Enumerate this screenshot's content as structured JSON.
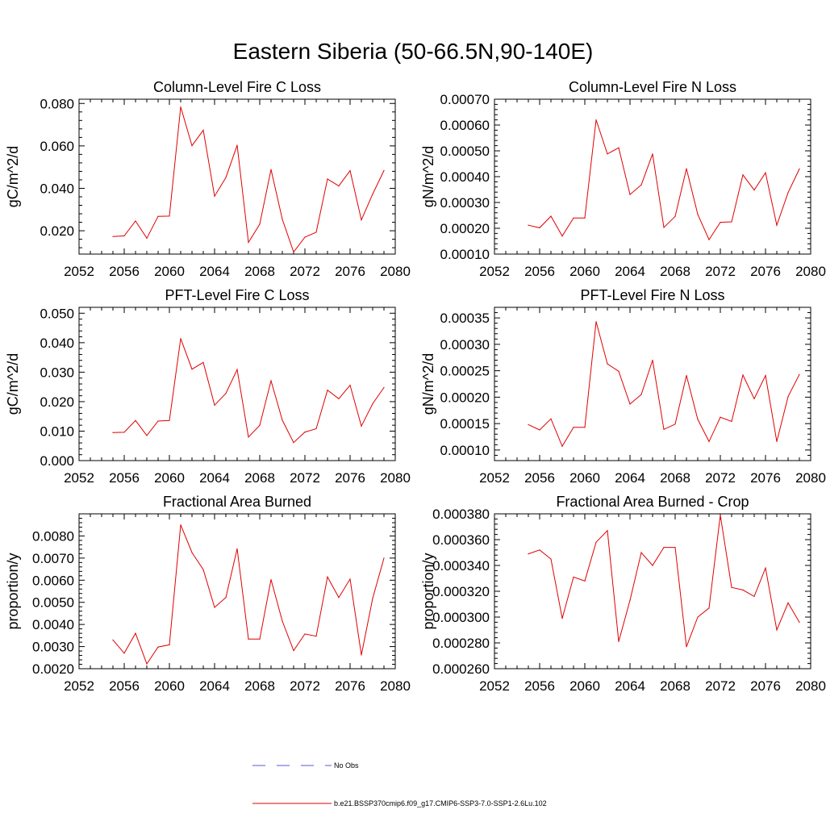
{
  "page_title": "Eastern Siberia (50-66.5N,90-140E)",
  "legend": {
    "items": [
      {
        "label": "No Obs",
        "color": "#5a5ad6",
        "style": "dashed"
      },
      {
        "label": "b.e21.BSSP370cmip6.f09_g17.CMIP6-SSP3-7.0-SSP1-2.6Lu.102",
        "color": "#e00000",
        "style": "solid"
      }
    ]
  },
  "chart_data": [
    {
      "type": "line",
      "title": "Column-Level Fire C Loss",
      "ylabel": "gC/m^2/d",
      "xlim": [
        2052,
        2080
      ],
      "ylim": [
        0.009,
        0.082
      ],
      "xticks": [
        "2052",
        "2056",
        "2060",
        "2064",
        "2068",
        "2072",
        "2076",
        "2080"
      ],
      "yticks": [
        "0.020",
        "0.040",
        "0.060",
        "0.080"
      ],
      "x": [
        2055,
        2056,
        2057,
        2058,
        2059,
        2060,
        2061,
        2062,
        2063,
        2064,
        2065,
        2066,
        2067,
        2068,
        2069,
        2070,
        2071,
        2072,
        2073,
        2074,
        2075,
        2076,
        2077,
        2078,
        2079
      ],
      "series": [
        {
          "color": "#e00000",
          "values": [
            0.0173,
            0.0176,
            0.0246,
            0.0165,
            0.0268,
            0.0269,
            0.0784,
            0.0601,
            0.0674,
            0.0363,
            0.0451,
            0.0603,
            0.0145,
            0.0231,
            0.0489,
            0.0254,
            0.01,
            0.017,
            0.0193,
            0.0444,
            0.0411,
            0.0483,
            0.0251,
            0.0373,
            0.0484
          ]
        }
      ]
    },
    {
      "type": "line",
      "title": "Column-Level Fire N Loss",
      "ylabel": "gN/m^2/d",
      "xlim": [
        2052,
        2080
      ],
      "ylim": [
        0.0001,
        0.0007
      ],
      "xticks": [
        "2052",
        "2056",
        "2060",
        "2064",
        "2068",
        "2072",
        "2076",
        "2080"
      ],
      "yticks": [
        "0.00010",
        "0.00020",
        "0.00030",
        "0.00040",
        "0.00050",
        "0.00060",
        "0.00070"
      ],
      "x": [
        2055,
        2056,
        2057,
        2058,
        2059,
        2060,
        2061,
        2062,
        2063,
        2064,
        2065,
        2066,
        2067,
        2068,
        2069,
        2070,
        2071,
        2072,
        2073,
        2074,
        2075,
        2076,
        2077,
        2078,
        2079
      ],
      "series": [
        {
          "color": "#e00000",
          "values": [
            0.000212,
            0.000202,
            0.000247,
            0.00017,
            0.00024,
            0.00024,
            0.00062,
            0.000488,
            0.000512,
            0.000331,
            0.000368,
            0.000488,
            0.000203,
            0.000246,
            0.000431,
            0.000254,
            0.000156,
            0.000223,
            0.000225,
            0.000407,
            0.000348,
            0.000415,
            0.000212,
            0.000338,
            0.00043
          ]
        }
      ]
    },
    {
      "type": "line",
      "title": "PFT-Level Fire C Loss",
      "ylabel": "gC/m^2/d",
      "xlim": [
        2052,
        2080
      ],
      "ylim": [
        0.0,
        0.052
      ],
      "xticks": [
        "2052",
        "2056",
        "2060",
        "2064",
        "2068",
        "2072",
        "2076",
        "2080"
      ],
      "yticks": [
        "0.000",
        "0.010",
        "0.020",
        "0.030",
        "0.040",
        "0.050"
      ],
      "x": [
        2055,
        2056,
        2057,
        2058,
        2059,
        2060,
        2061,
        2062,
        2063,
        2064,
        2065,
        2066,
        2067,
        2068,
        2069,
        2070,
        2071,
        2072,
        2073,
        2074,
        2075,
        2076,
        2077,
        2078,
        2079
      ],
      "series": [
        {
          "color": "#e00000",
          "values": [
            0.0095,
            0.0096,
            0.0136,
            0.0085,
            0.0134,
            0.0136,
            0.0414,
            0.031,
            0.0333,
            0.0188,
            0.0228,
            0.0309,
            0.008,
            0.012,
            0.0271,
            0.0137,
            0.0061,
            0.0097,
            0.0108,
            0.0239,
            0.021,
            0.0256,
            0.0117,
            0.0193,
            0.0248
          ]
        }
      ]
    },
    {
      "type": "line",
      "title": "PFT-Level Fire N Loss",
      "ylabel": "gN/m^2/d",
      "xlim": [
        2052,
        2080
      ],
      "ylim": [
        8e-05,
        0.00037
      ],
      "xticks": [
        "2052",
        "2056",
        "2060",
        "2064",
        "2068",
        "2072",
        "2076",
        "2080"
      ],
      "yticks": [
        "0.00010",
        "0.00015",
        "0.00020",
        "0.00025",
        "0.00030",
        "0.00035"
      ],
      "x": [
        2055,
        2056,
        2057,
        2058,
        2059,
        2060,
        2061,
        2062,
        2063,
        2064,
        2065,
        2066,
        2067,
        2068,
        2069,
        2070,
        2071,
        2072,
        2073,
        2074,
        2075,
        2076,
        2077,
        2078,
        2079
      ],
      "series": [
        {
          "color": "#e00000",
          "values": [
            0.000148,
            0.000138,
            0.000159,
            0.000107,
            0.000143,
            0.000143,
            0.000343,
            0.000263,
            0.000249,
            0.000187,
            0.000205,
            0.00027,
            0.000139,
            0.000149,
            0.000241,
            0.000158,
            0.000116,
            0.000162,
            0.000154,
            0.000242,
            0.000197,
            0.000241,
            0.000116,
            0.000201,
            0.000243
          ]
        }
      ]
    },
    {
      "type": "line",
      "title": "Fractional Area Burned",
      "ylabel": "proportion/y",
      "xlim": [
        2052,
        2080
      ],
      "ylim": [
        0.002,
        0.009
      ],
      "xticks": [
        "2052",
        "2056",
        "2060",
        "2064",
        "2068",
        "2072",
        "2076",
        "2080"
      ],
      "yticks": [
        "0.0020",
        "0.0030",
        "0.0040",
        "0.0050",
        "0.0060",
        "0.0070",
        "0.0080"
      ],
      "x": [
        2055,
        2056,
        2057,
        2058,
        2059,
        2060,
        2061,
        2062,
        2063,
        2064,
        2065,
        2066,
        2067,
        2068,
        2069,
        2070,
        2071,
        2072,
        2073,
        2074,
        2075,
        2076,
        2077,
        2078,
        2079
      ],
      "series": [
        {
          "color": "#e00000",
          "values": [
            0.0033,
            0.0027,
            0.0036,
            0.00222,
            0.00298,
            0.00308,
            0.0085,
            0.00725,
            0.00648,
            0.00477,
            0.00522,
            0.00742,
            0.00334,
            0.00334,
            0.00603,
            0.00415,
            0.00282,
            0.00357,
            0.00347,
            0.00615,
            0.00522,
            0.00605,
            0.00262,
            0.00518,
            0.007
          ]
        }
      ]
    },
    {
      "type": "line",
      "title": "Fractional Area Burned - Crop",
      "ylabel": "proportion/y",
      "xlim": [
        2052,
        2080
      ],
      "ylim": [
        0.00026,
        0.00038
      ],
      "xticks": [
        "2052",
        "2056",
        "2060",
        "2064",
        "2068",
        "2072",
        "2076",
        "2080"
      ],
      "yticks": [
        "0.000260",
        "0.000280",
        "0.000300",
        "0.000320",
        "0.000340",
        "0.000360",
        "0.000380"
      ],
      "x": [
        2055,
        2056,
        2057,
        2058,
        2059,
        2060,
        2061,
        2062,
        2063,
        2064,
        2065,
        2066,
        2067,
        2068,
        2069,
        2070,
        2071,
        2072,
        2073,
        2074,
        2075,
        2076,
        2077,
        2078,
        2079
      ],
      "series": [
        {
          "color": "#e00000",
          "values": [
            0.000349,
            0.000352,
            0.000345,
            0.000299,
            0.000331,
            0.000328,
            0.000358,
            0.000367,
            0.000281,
            0.000313,
            0.00035,
            0.00034,
            0.000354,
            0.000354,
            0.000277,
            0.0003,
            0.000307,
            0.000379,
            0.000323,
            0.000321,
            0.000316,
            0.000338,
            0.00029,
            0.000311,
            0.000296
          ]
        }
      ]
    }
  ]
}
